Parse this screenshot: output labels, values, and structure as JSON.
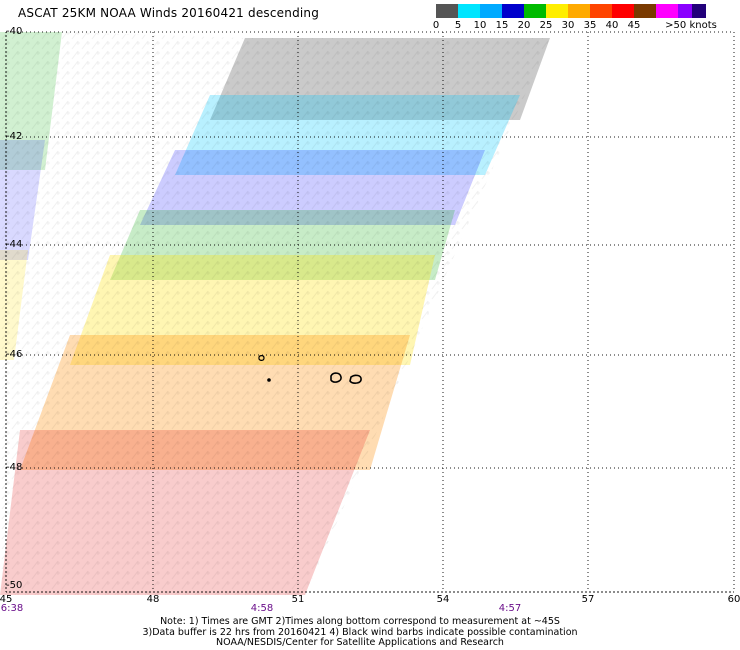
{
  "title": "ASCAT 25KM NOAA Winds 20160421 descending",
  "legend": {
    "unit_label": ">50 knots",
    "bins": [
      {
        "label": "0",
        "color": "#555555"
      },
      {
        "label": "5",
        "color": "#00e5ff"
      },
      {
        "label": "10",
        "color": "#00aaff"
      },
      {
        "label": "15",
        "color": "#0000cc"
      },
      {
        "label": "20",
        "color": "#00bb00"
      },
      {
        "label": "25",
        "color": "#ffee00"
      },
      {
        "label": "30",
        "color": "#ffaa00"
      },
      {
        "label": "35",
        "color": "#ff4400"
      },
      {
        "label": "40",
        "color": "#ff0000"
      },
      {
        "label": "45",
        "color": "#7a3a00"
      },
      {
        "label": "",
        "color": "#ff00ff"
      },
      {
        "label": "",
        "color": "#8a00ff"
      },
      {
        "label": "",
        "color": "#22007a"
      }
    ]
  },
  "axes": {
    "latitude_labels": [
      "-40",
      "-42",
      "-44",
      "-46",
      "-48",
      "-50"
    ],
    "longitude_labels": [
      "45",
      "48",
      "51",
      "54",
      "57",
      "60"
    ]
  },
  "pass_times": [
    "6:38",
    "4:58",
    "4:57"
  ],
  "notes": [
    "Note: 1) Times are GMT 2)Times along bottom correspond to measurement at ~45S",
    "3)Data buffer is 22 hrs from 20160421 4) Black wind barbs indicate possible contamination",
    "NOAA/NESDIS/Center for Satellite Applications and Research"
  ],
  "colors": {
    "grid": "#000000",
    "time_text": "#6a0e8a",
    "island_outline": "#000000"
  }
}
